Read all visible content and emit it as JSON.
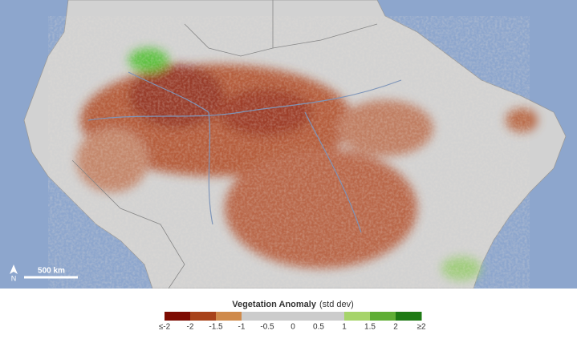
{
  "map": {
    "scale_bar": {
      "label": "500 km"
    },
    "north_arrow": {
      "label": "N"
    },
    "legend": {
      "title": "Vegetation Anomaly",
      "unit": "(std dev)",
      "labels": [
        "≤-2",
        "-2",
        "-1.5",
        "-1",
        "-0.5",
        "0",
        "0.5",
        "1",
        "1.5",
        "2",
        "≥2"
      ],
      "colors": [
        "#7d0c02",
        "#a8431a",
        "#cf8a4b",
        "#cccccc",
        "#cccccc",
        "#cccccc",
        "#cccccc",
        "#a6d46a",
        "#5fae35",
        "#1e7a14"
      ]
    }
  }
}
